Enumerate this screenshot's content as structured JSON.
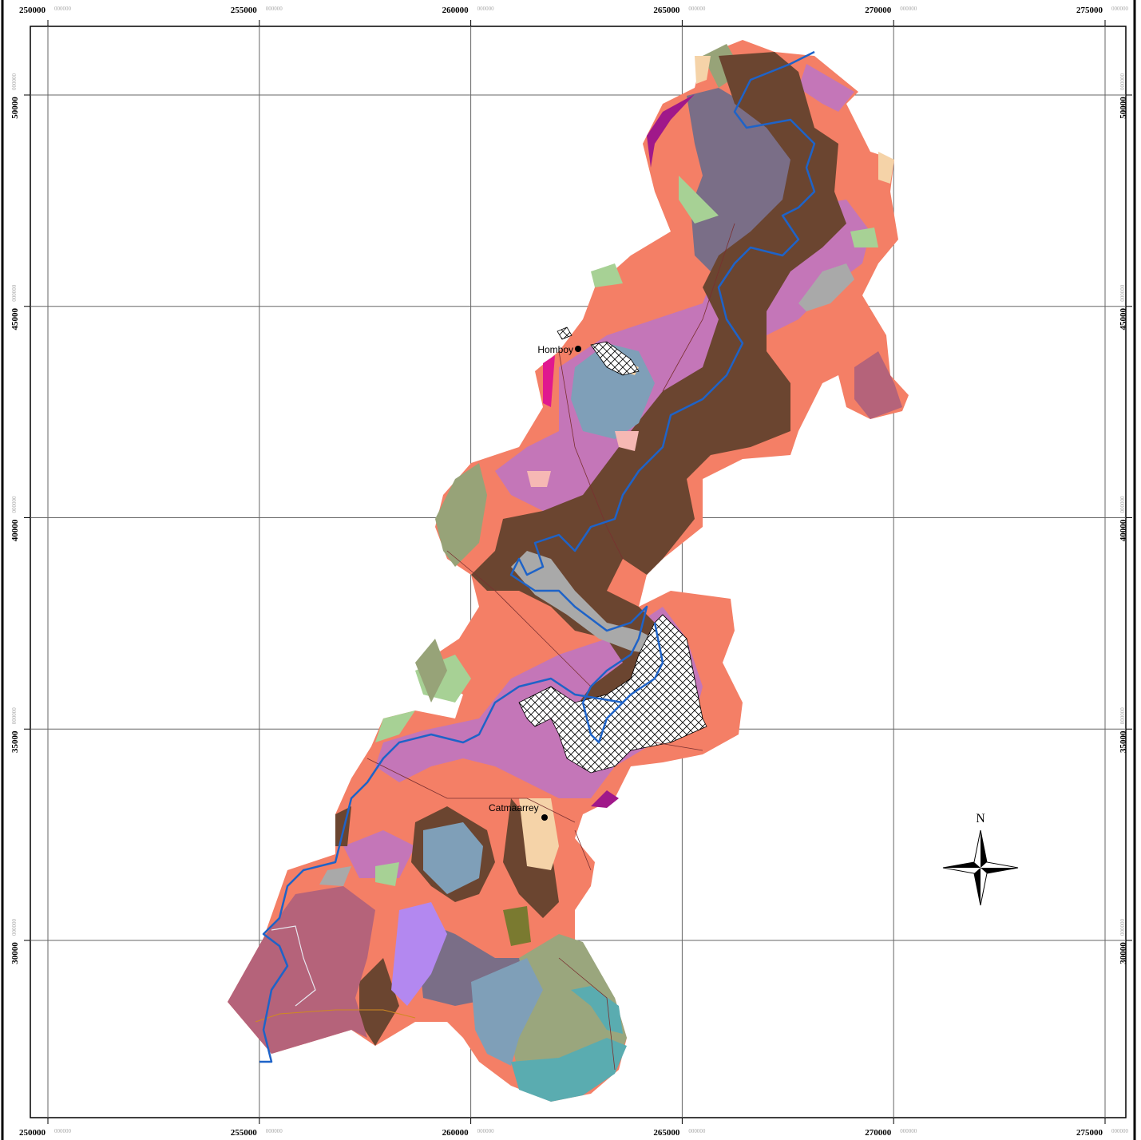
{
  "grid": {
    "x_labels": [
      250000,
      255000,
      260000,
      265000,
      270000,
      275000
    ],
    "y_labels": [
      50000,
      45000,
      40000,
      35000,
      30000
    ],
    "label_suffix": "000000"
  },
  "places": [
    {
      "name": "Homboy"
    },
    {
      "name": "Catmaarrey"
    }
  ],
  "compass": {
    "label": "N"
  }
}
